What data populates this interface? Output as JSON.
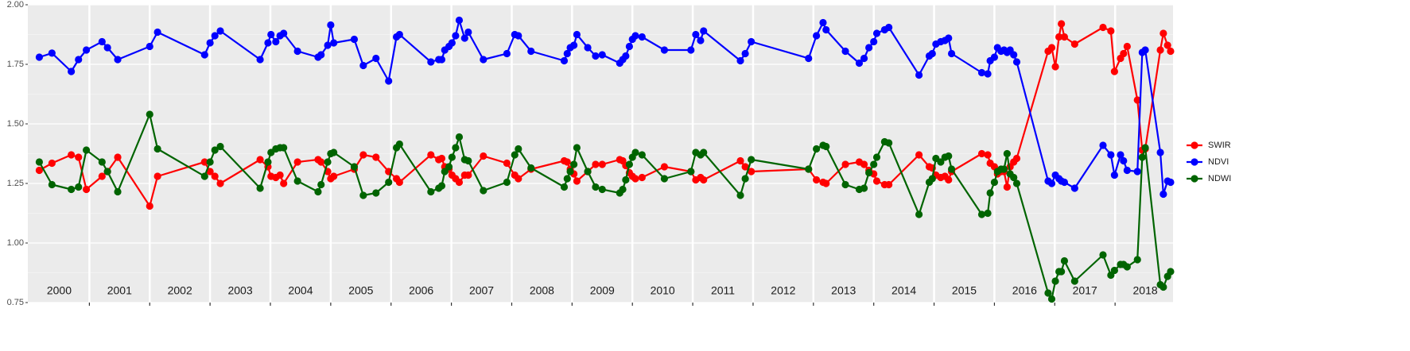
{
  "chart_data": {
    "type": "line",
    "x": [
      2000.17,
      2000.38,
      2000.7,
      2000.82,
      2000.95,
      2001.21,
      2001.3,
      2001.47,
      2002.0,
      2002.13,
      2002.91,
      2003.0,
      2003.08,
      2003.17,
      2003.83,
      2003.96,
      2004.01,
      2004.09,
      2004.16,
      2004.22,
      2004.45,
      2004.79,
      2004.84,
      2004.95,
      2005.0,
      2005.05,
      2005.39,
      2005.54,
      2005.75,
      2005.96,
      2006.09,
      2006.14,
      2006.66,
      2006.79,
      2006.84,
      2006.89,
      2006.96,
      2007.01,
      2007.07,
      2007.13,
      2007.22,
      2007.28,
      2007.53,
      2007.92,
      2008.05,
      2008.11,
      2008.32,
      2008.87,
      2008.92,
      2008.97,
      2009.03,
      2009.08,
      2009.26,
      2009.39,
      2009.5,
      2009.79,
      2009.84,
      2009.89,
      2009.95,
      2010.0,
      2010.05,
      2010.16,
      2010.53,
      2010.97,
      2011.05,
      2011.13,
      2011.18,
      2011.79,
      2011.87,
      2011.97,
      2012.92,
      2013.05,
      2013.16,
      2013.21,
      2013.53,
      2013.76,
      2013.84,
      2013.92,
      2014.0,
      2014.05,
      2014.18,
      2014.25,
      2014.75,
      2014.92,
      2014.97,
      2015.03,
      2015.11,
      2015.18,
      2015.24,
      2015.29,
      2015.79,
      2015.89,
      2015.93,
      2016.0,
      2016.05,
      2016.11,
      2016.16,
      2016.21,
      2016.26,
      2016.32,
      2016.37,
      2016.89,
      2016.95,
      2017.01,
      2017.07,
      2017.11,
      2017.16,
      2017.33,
      2017.8,
      2017.93,
      2017.99,
      2018.09,
      2018.14,
      2018.2,
      2018.37,
      2018.45,
      2018.5,
      2018.75,
      2018.8,
      2018.87,
      2018.92
    ],
    "series": [
      {
        "name": "SWIR",
        "color": "#ff0000",
        "values": [
          1.305,
          1.335,
          1.37,
          1.36,
          1.225,
          1.28,
          1.3,
          1.36,
          1.155,
          1.28,
          1.34,
          1.3,
          1.28,
          1.25,
          1.35,
          1.32,
          1.28,
          1.275,
          1.285,
          1.25,
          1.34,
          1.35,
          1.34,
          1.3,
          1.27,
          1.28,
          1.31,
          1.37,
          1.36,
          1.3,
          1.27,
          1.255,
          1.37,
          1.35,
          1.355,
          1.32,
          1.31,
          1.285,
          1.27,
          1.255,
          1.285,
          1.285,
          1.365,
          1.335,
          1.285,
          1.27,
          1.31,
          1.345,
          1.34,
          1.31,
          1.29,
          1.26,
          1.3,
          1.33,
          1.33,
          1.35,
          1.345,
          1.325,
          1.295,
          1.28,
          1.27,
          1.275,
          1.32,
          1.3,
          1.265,
          1.275,
          1.265,
          1.345,
          1.32,
          1.3,
          1.31,
          1.265,
          1.255,
          1.25,
          1.33,
          1.34,
          1.33,
          1.305,
          1.29,
          1.26,
          1.245,
          1.245,
          1.37,
          1.32,
          1.315,
          1.285,
          1.275,
          1.28,
          1.265,
          1.3,
          1.375,
          1.37,
          1.335,
          1.32,
          1.29,
          1.3,
          1.3,
          1.235,
          1.32,
          1.34,
          1.355,
          1.805,
          1.82,
          1.74,
          1.865,
          1.92,
          1.865,
          1.835,
          1.905,
          1.89,
          1.72,
          1.775,
          1.795,
          1.825,
          1.6,
          1.39,
          1.395,
          1.81,
          1.88,
          1.83,
          1.805
        ]
      },
      {
        "name": "NDVI",
        "color": "#0000ff",
        "values": [
          1.78,
          1.797,
          1.72,
          1.77,
          1.81,
          1.845,
          1.82,
          1.77,
          1.825,
          1.885,
          1.79,
          1.84,
          1.87,
          1.89,
          1.77,
          1.84,
          1.875,
          1.845,
          1.87,
          1.88,
          1.805,
          1.78,
          1.79,
          1.83,
          1.915,
          1.84,
          1.855,
          1.745,
          1.775,
          1.68,
          1.865,
          1.875,
          1.76,
          1.77,
          1.77,
          1.81,
          1.825,
          1.84,
          1.87,
          1.935,
          1.86,
          1.885,
          1.77,
          1.795,
          1.875,
          1.87,
          1.805,
          1.765,
          1.795,
          1.82,
          1.83,
          1.875,
          1.82,
          1.785,
          1.79,
          1.755,
          1.77,
          1.785,
          1.825,
          1.855,
          1.87,
          1.865,
          1.81,
          1.81,
          1.875,
          1.85,
          1.89,
          1.765,
          1.795,
          1.845,
          1.775,
          1.87,
          1.925,
          1.895,
          1.805,
          1.755,
          1.775,
          1.82,
          1.845,
          1.88,
          1.895,
          1.905,
          1.705,
          1.785,
          1.795,
          1.835,
          1.845,
          1.85,
          1.86,
          1.795,
          1.715,
          1.71,
          1.765,
          1.78,
          1.82,
          1.805,
          1.81,
          1.8,
          1.81,
          1.79,
          1.76,
          1.26,
          1.25,
          1.285,
          1.27,
          1.26,
          1.255,
          1.23,
          1.41,
          1.37,
          1.285,
          1.37,
          1.345,
          1.305,
          1.3,
          1.8,
          1.81,
          1.38,
          1.205,
          1.26,
          1.255
        ]
      },
      {
        "name": "NDWI",
        "color": "#006400",
        "values": [
          1.34,
          1.245,
          1.225,
          1.235,
          1.39,
          1.34,
          1.3,
          1.215,
          1.54,
          1.395,
          1.28,
          1.34,
          1.39,
          1.405,
          1.23,
          1.34,
          1.38,
          1.395,
          1.4,
          1.4,
          1.26,
          1.215,
          1.245,
          1.34,
          1.375,
          1.38,
          1.32,
          1.2,
          1.21,
          1.255,
          1.4,
          1.415,
          1.215,
          1.23,
          1.24,
          1.3,
          1.32,
          1.36,
          1.4,
          1.445,
          1.35,
          1.345,
          1.22,
          1.255,
          1.37,
          1.395,
          1.315,
          1.235,
          1.27,
          1.3,
          1.33,
          1.4,
          1.3,
          1.235,
          1.225,
          1.21,
          1.225,
          1.265,
          1.33,
          1.36,
          1.38,
          1.37,
          1.27,
          1.3,
          1.38,
          1.37,
          1.38,
          1.2,
          1.27,
          1.35,
          1.31,
          1.395,
          1.41,
          1.405,
          1.245,
          1.225,
          1.23,
          1.295,
          1.33,
          1.36,
          1.425,
          1.42,
          1.12,
          1.255,
          1.27,
          1.355,
          1.34,
          1.36,
          1.365,
          1.31,
          1.12,
          1.125,
          1.21,
          1.255,
          1.3,
          1.31,
          1.31,
          1.375,
          1.29,
          1.275,
          1.25,
          0.79,
          0.765,
          0.84,
          0.88,
          0.88,
          0.925,
          0.84,
          0.95,
          0.865,
          0.885,
          0.91,
          0.91,
          0.9,
          0.93,
          1.36,
          1.4,
          0.825,
          0.815,
          0.86,
          0.88
        ]
      }
    ],
    "xlim": [
      1999.98,
      2018.96
    ],
    "ylim": [
      0.75,
      2.0
    ],
    "yticks": [
      {
        "value": 0.75,
        "label": "0.75"
      },
      {
        "value": 1,
        "label": "1.00"
      },
      {
        "value": 1.25,
        "label": "1.25"
      },
      {
        "value": 1.5,
        "label": "1.50"
      },
      {
        "value": 1.75,
        "label": "1.75"
      },
      {
        "value": 2,
        "label": "2.00"
      }
    ],
    "xgrid": [
      2001,
      2002,
      2003,
      2004,
      2005,
      2006,
      2007,
      2008,
      2009,
      2010,
      2011,
      2012,
      2013,
      2014,
      2015,
      2016,
      2017,
      2018
    ],
    "xticks": [
      {
        "value": 2000.5,
        "label": "2000"
      },
      {
        "value": 2001.5,
        "label": "2001"
      },
      {
        "value": 2002.5,
        "label": "2002"
      },
      {
        "value": 2003.5,
        "label": "2003"
      },
      {
        "value": 2004.5,
        "label": "2004"
      },
      {
        "value": 2005.5,
        "label": "2005"
      },
      {
        "value": 2006.5,
        "label": "2006"
      },
      {
        "value": 2007.5,
        "label": "2007"
      },
      {
        "value": 2008.5,
        "label": "2008"
      },
      {
        "value": 2009.5,
        "label": "2009"
      },
      {
        "value": 2010.5,
        "label": "2010"
      },
      {
        "value": 2011.5,
        "label": "2011"
      },
      {
        "value": 2012.5,
        "label": "2012"
      },
      {
        "value": 2013.5,
        "label": "2013"
      },
      {
        "value": 2014.5,
        "label": "2014"
      },
      {
        "value": 2015.5,
        "label": "2015"
      },
      {
        "value": 2016.5,
        "label": "2016"
      },
      {
        "value": 2017.5,
        "label": "2017"
      },
      {
        "value": 2018.5,
        "label": "2018"
      }
    ],
    "grid": true,
    "legend_position": "right"
  }
}
